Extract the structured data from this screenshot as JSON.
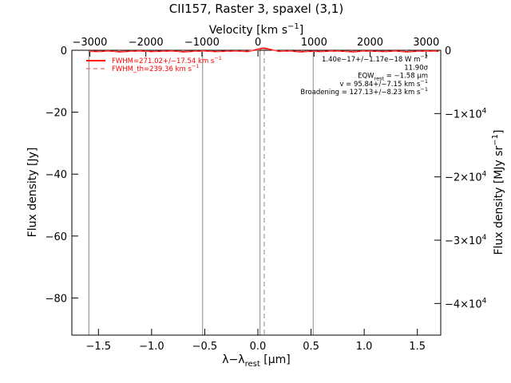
{
  "chart_data": {
    "type": "line",
    "title": "CII157, Raster 3, spaxel (3,1)",
    "xlabel": "λ−λrest [μm]",
    "xlabel_parts": {
      "pre": "λ−λ",
      "sub": "rest",
      "post": " [μm]"
    },
    "ylabel": "Flux density [Jy]",
    "top_axis_label": "Velocity [km s−1]",
    "top_axis_parts": {
      "pre": "Velocity [km s",
      "sup": "−1",
      "post": "]"
    },
    "right_axis_label": "Flux density [MJy sr−1]",
    "right_axis_parts": {
      "pre": "Flux density [MJy sr",
      "sup": "−1",
      "post": "]"
    },
    "xlim": [
      -1.75,
      1.72
    ],
    "ylim": [
      -92,
      0
    ],
    "velocity_lim": [
      -3320,
      3260
    ],
    "right_lim": [
      -45000,
      0
    ],
    "x_ticks": [
      -1.5,
      -1.0,
      -0.5,
      0.0,
      0.5,
      1.0,
      1.5
    ],
    "x_tick_labels": [
      "−1.5",
      "−1.0",
      "−0.5",
      "0.0",
      "0.5",
      "1.0",
      "1.5"
    ],
    "y_ticks": [
      0,
      -20,
      -40,
      -60,
      -80
    ],
    "y_tick_labels": [
      "0",
      "−20",
      "−40",
      "−60",
      "−80"
    ],
    "top_ticks": [
      -3000,
      -2000,
      -1000,
      0,
      1000,
      2000,
      3000
    ],
    "top_tick_labels": [
      "−3000",
      "−2000",
      "−1000",
      "0",
      "1000",
      "2000",
      "3000"
    ],
    "right_ticks": [
      0,
      -10000,
      -20000,
      -30000,
      -40000
    ],
    "right_tick_labels": [
      {
        "base": "0",
        "sup": ""
      },
      {
        "base": "−1×10",
        "sup": "4"
      },
      {
        "base": "−2×10",
        "sup": "4"
      },
      {
        "base": "−3×10",
        "sup": "4"
      },
      {
        "base": "−4×10",
        "sup": "4"
      }
    ],
    "vertical_lines": [
      {
        "x": -1.59,
        "style": "solid",
        "color": "#888888"
      },
      {
        "x": -0.52,
        "style": "solid",
        "color": "#888888"
      },
      {
        "x": 0.02,
        "style": "solid",
        "color": "#888888"
      },
      {
        "x": 0.06,
        "style": "dashed",
        "color": "#888888"
      },
      {
        "x": 0.52,
        "style": "solid",
        "color": "#888888"
      }
    ],
    "series": [
      {
        "name": "FWHM=271.02+/−17.54 km s−1",
        "legend_parts": {
          "pre": "FWHM=271.02+/−17.54 km s",
          "sup": "−1"
        },
        "style": "solid",
        "color": "#ff0000",
        "x": [
          -1.59,
          -1.5,
          -1.4,
          -1.3,
          -1.2,
          -1.1,
          -1.0,
          -0.9,
          -0.8,
          -0.7,
          -0.6,
          -0.5,
          -0.4,
          -0.3,
          -0.2,
          -0.1,
          -0.05,
          0.0,
          0.03,
          0.06,
          0.09,
          0.12,
          0.2,
          0.3,
          0.4,
          0.5,
          0.6,
          0.7,
          0.8,
          0.9,
          1.0,
          1.1,
          1.2,
          1.3,
          1.4,
          1.5,
          1.6,
          1.7
        ],
        "y": [
          -0.3,
          -0.4,
          -0.2,
          -0.5,
          -0.3,
          -0.2,
          -0.4,
          -0.3,
          -0.2,
          -0.5,
          -0.3,
          -0.2,
          -0.4,
          -0.3,
          -0.2,
          -0.4,
          -0.1,
          0.3,
          0.6,
          0.7,
          0.5,
          0.2,
          -0.3,
          -0.2,
          -0.5,
          -0.3,
          -0.4,
          -0.2,
          -0.3,
          -0.5,
          -0.2,
          -0.3,
          -0.4,
          -0.2,
          -0.5,
          -0.3,
          -0.2,
          -0.3
        ]
      },
      {
        "name": "FWHM_th=239.36 km s−1",
        "legend_parts": {
          "pre": "FWHM_th=239.36 km s",
          "sup": "−1"
        },
        "style": "dashed",
        "color": "#ff6666",
        "x": [
          -1.59,
          -1.0,
          -0.5,
          -0.2,
          -0.1,
          0.0,
          0.03,
          0.06,
          0.09,
          0.12,
          0.2,
          0.3,
          0.5,
          1.0,
          1.5,
          1.7
        ],
        "y": [
          -0.3,
          -0.3,
          -0.3,
          -0.3,
          -0.2,
          0.1,
          0.3,
          0.4,
          0.3,
          0.1,
          -0.2,
          -0.3,
          -0.3,
          -0.3,
          -0.3,
          -0.3
        ]
      }
    ],
    "annotations": [
      {
        "type": "sup",
        "pre": "1.40e−17+/−1.17e−18 W m",
        "sup": "−2",
        "post": ""
      },
      {
        "type": "plain",
        "text": "11.90σ"
      },
      {
        "type": "sub",
        "pre": "EQW",
        "sub": "rest",
        "post": " = −1.58 μm"
      },
      {
        "type": "sup",
        "pre": "v = 95.84+/−7.15 km s",
        "sup": "−1",
        "post": ""
      },
      {
        "type": "sup",
        "pre": "Broadening = 127.13+/−8.23 km s",
        "sup": "−1",
        "post": ""
      }
    ]
  }
}
